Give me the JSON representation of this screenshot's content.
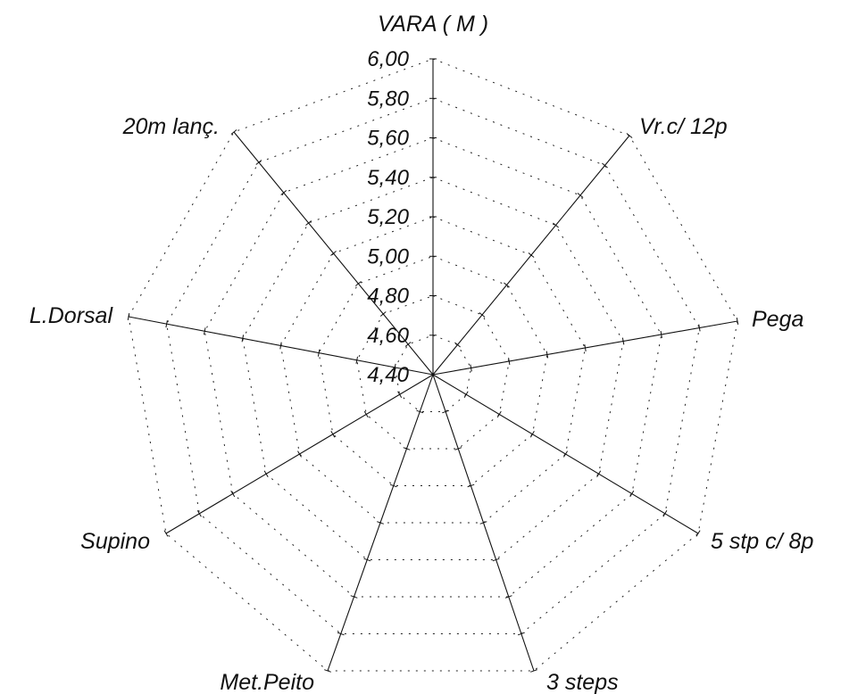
{
  "chart_data": {
    "type": "radar",
    "axes": [
      "VARA ( M )",
      "Vr.c/ 12p",
      "Pega",
      "5 stp c/ 8p",
      "3 steps",
      "Met.Peito",
      "Supino",
      "L.Dorsal",
      "20m lanç."
    ],
    "tick_labels": [
      "4,40",
      "4,60",
      "4,80",
      "5,00",
      "5,20",
      "5,40",
      "5,60",
      "5,80",
      "6,00"
    ],
    "range": [
      4.4,
      6.0
    ],
    "grid": "dotted rings",
    "colors": {
      "ink": "#111111",
      "background": "#ffffff"
    }
  }
}
